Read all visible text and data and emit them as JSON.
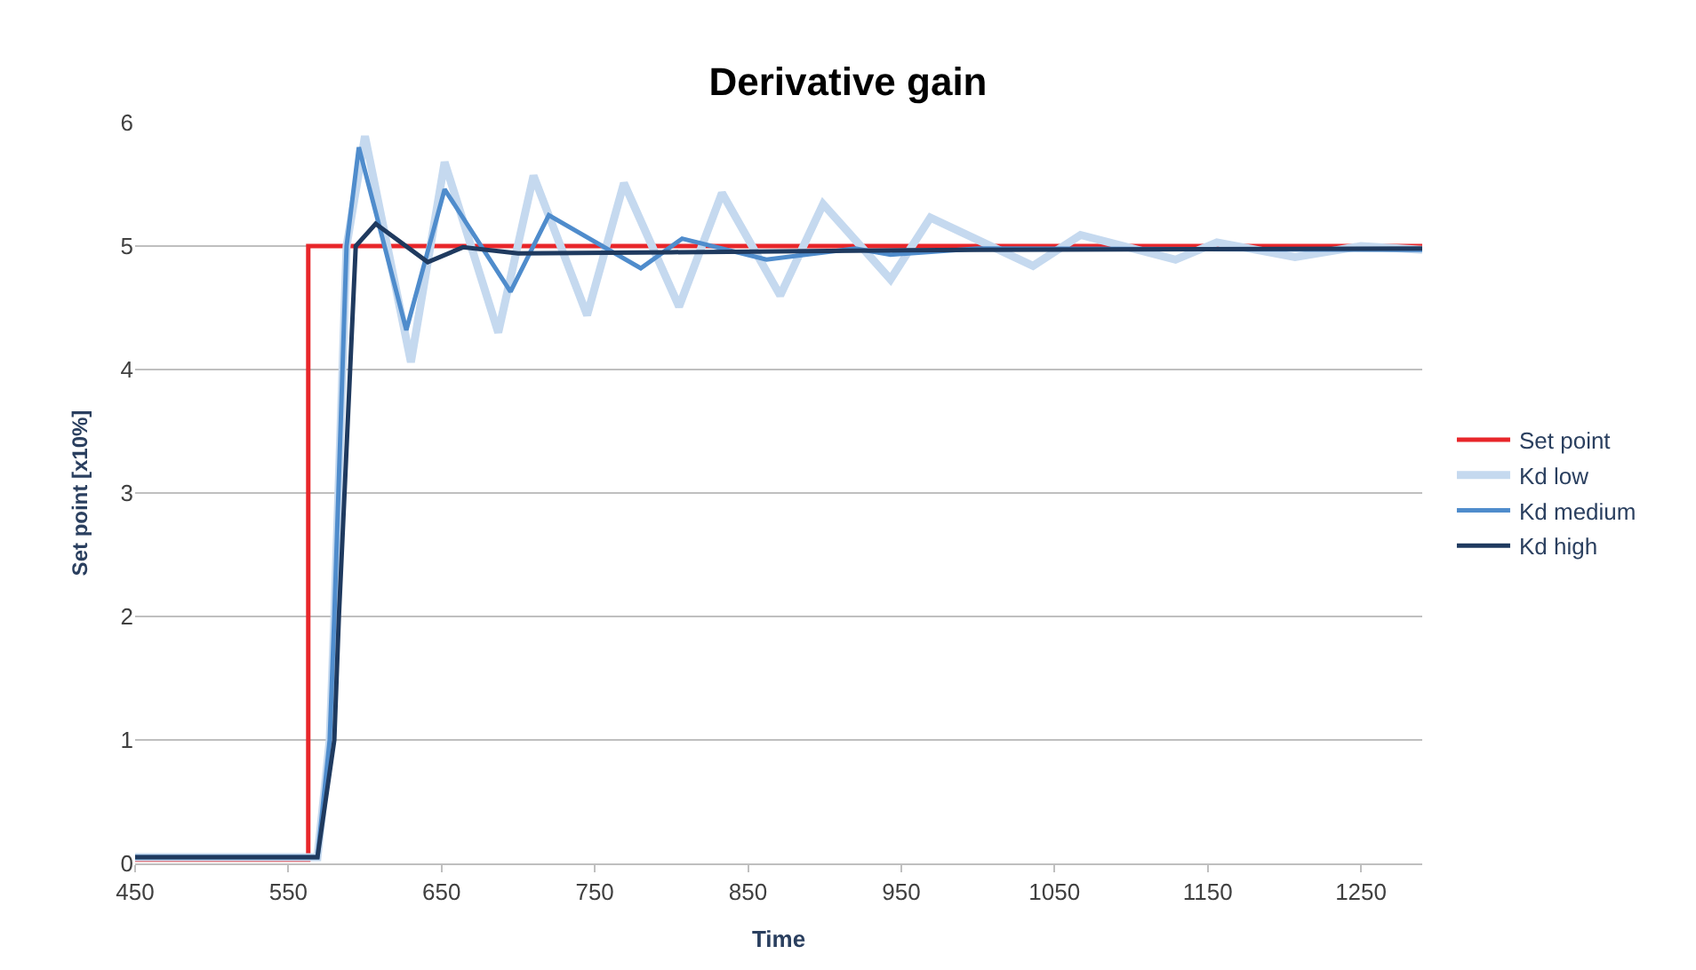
{
  "chart_data": {
    "type": "line",
    "title": "Derivative gain",
    "xlabel": "Time",
    "ylabel": "Set point [x10%]",
    "xlim": [
      450,
      1290
    ],
    "xticks": [
      450,
      550,
      650,
      750,
      850,
      950,
      1050,
      1150,
      1250
    ],
    "ylim": [
      0,
      6
    ],
    "yticks": [
      0,
      1,
      2,
      3,
      4,
      5,
      6
    ],
    "grid": "y",
    "legend": "right",
    "marker": "none",
    "line_style": "solid",
    "series": [
      {
        "name": "Set point",
        "color": "#e8262a",
        "x": [
          450,
          563,
          563,
          1290
        ],
        "values": [
          0.03,
          0.03,
          5,
          5
        ]
      },
      {
        "name": "Kd low",
        "color": "#c5d9ef",
        "x": [
          450,
          569,
          577,
          580,
          588,
          600,
          630,
          652,
          687,
          710,
          745,
          769,
          805,
          833,
          871,
          899,
          943,
          969,
          1036,
          1067,
          1129,
          1156,
          1207,
          1250,
          1290
        ],
        "values": [
          0.05,
          0.05,
          1,
          2,
          5,
          5.89,
          4.06,
          5.68,
          4.3,
          5.57,
          4.44,
          5.51,
          4.51,
          5.43,
          4.6,
          5.34,
          4.73,
          5.23,
          4.84,
          5.09,
          4.89,
          5.03,
          4.91,
          5.0,
          4.97
        ]
      },
      {
        "name": "Kd medium",
        "color": "#4f8ccc",
        "x": [
          450,
          569,
          577,
          580,
          588,
          596,
          627,
          652,
          695,
          720,
          780,
          807,
          862,
          920,
          943,
          1000,
          1290
        ],
        "values": [
          0.05,
          0.05,
          1,
          2,
          5,
          5.8,
          4.32,
          5.46,
          4.63,
          5.25,
          4.82,
          5.06,
          4.89,
          4.98,
          4.93,
          4.98,
          4.97
        ]
      },
      {
        "name": "Kd high",
        "color": "#1f3a5f",
        "x": [
          450,
          569,
          580,
          583,
          594,
          607,
          641,
          664,
          700,
          800,
          1000,
          1290
        ],
        "values": [
          0.05,
          0.05,
          1,
          2,
          5,
          5.18,
          4.87,
          4.99,
          4.94,
          4.95,
          4.97,
          4.98
        ]
      }
    ]
  }
}
